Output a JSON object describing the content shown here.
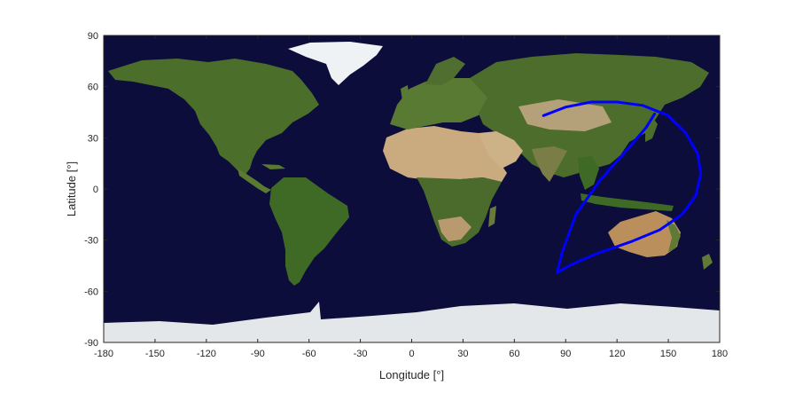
{
  "chart_data": {
    "type": "map-track",
    "xlabel": "Longitude [°]",
    "ylabel": "Latitude [°]",
    "xlim": [
      -180,
      180
    ],
    "ylim": [
      -90,
      90
    ],
    "xticks": [
      -180,
      -150,
      -120,
      -90,
      -60,
      -30,
      0,
      30,
      60,
      90,
      120,
      150,
      180
    ],
    "yticks": [
      -90,
      -60,
      -30,
      0,
      30,
      60,
      90
    ],
    "background": "satellite world map (equirectangular)",
    "series": [
      {
        "color": "#0000ff",
        "lon": [
          77,
          90,
          105,
          120,
          135,
          150,
          160,
          167,
          169,
          166,
          158,
          145,
          128,
          108,
          94,
          85,
          88,
          96,
          110,
          125,
          137,
          142
        ],
        "lat": [
          43,
          48,
          51,
          51,
          49,
          43,
          33,
          21,
          9,
          -4,
          -15,
          -24,
          -31,
          -38,
          -44,
          -49,
          -37,
          -15,
          5,
          22,
          36,
          44
        ]
      }
    ]
  },
  "colors": {
    "ocean": "#0d0d3b",
    "land_green": "#4a6e2a",
    "desert": "#c9ad82",
    "ice": "#e9eef2",
    "track": "#0000ff",
    "axis": "#262626"
  }
}
